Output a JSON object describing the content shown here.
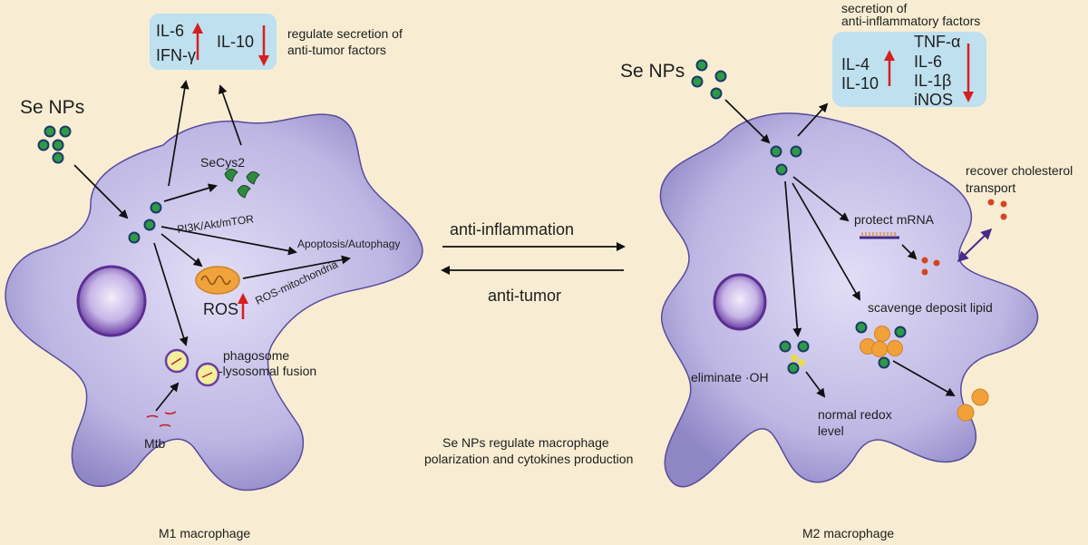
{
  "colors": {
    "background": "#f8edd3",
    "cell_fill": "#b9b3e1",
    "cell_edge": "#4a3b8c",
    "nucleus": "#6a3fa4",
    "box": "#bfe0ef",
    "nanoparticle": "#2e9a44",
    "up_down_arrow": "#d61f1f",
    "lipid_droplet": "#f0a13a",
    "cholesterol": "#d5461f"
  },
  "m1": {
    "label": "M1 macrophage",
    "se_nps": "Se NPs",
    "box": {
      "il6": "IL-6",
      "ifng": "IFN-γ",
      "il10": "IL-10"
    },
    "box_caption": [
      "regulate secretion of",
      "anti-tumor factors"
    ],
    "secys2": "SeCys2",
    "pathway": "PI3K/Akt/mTOR",
    "apoptosis": "Apoptosis/Autophagy",
    "ros_mito": "ROS-mitochondria",
    "ros": "ROS",
    "phago": [
      "phagosome",
      "-lysosomal fusion"
    ],
    "mtb": "Mtb"
  },
  "center": {
    "anti_inflammation": "anti-inflammation",
    "anti_tumor": "anti-tumor",
    "caption": [
      "Se NPs regulate macrophage",
      "polarization and cytokines production"
    ]
  },
  "m2": {
    "label": "M2 macrophage",
    "se_nps": "Se NPs",
    "box_caption": [
      "secretion of",
      "anti-inflammatory factors"
    ],
    "box": {
      "il4": "IL-4",
      "il10": "IL-10",
      "tnfa": "TNF-α",
      "il6": "IL-6",
      "il1b": "IL-1β",
      "inos": "iNOS"
    },
    "cholesterol": [
      "recover cholesterol",
      "transport"
    ],
    "protect_mrna": "protect mRNA",
    "scavenge": "scavenge deposit lipid",
    "eliminate": "eliminate ·OH",
    "redox": [
      "normal redox",
      "level"
    ]
  }
}
